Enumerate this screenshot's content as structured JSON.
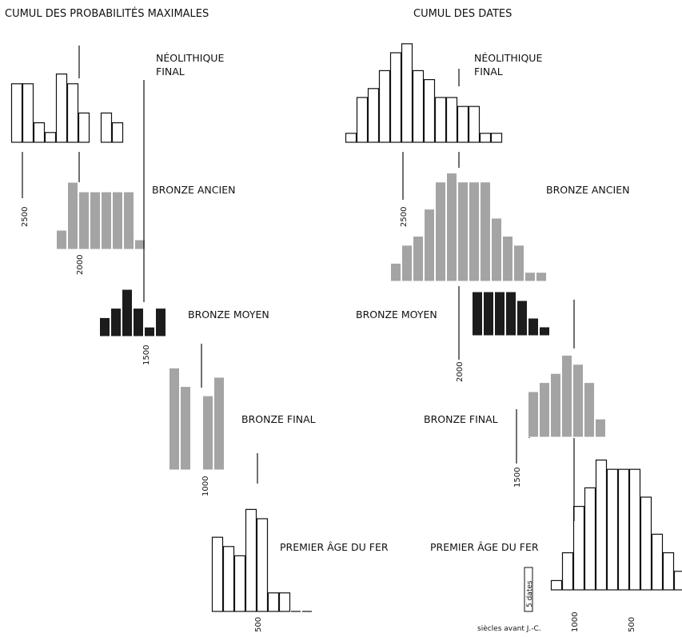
{
  "chart_data": [
    {
      "type": "bar",
      "title": "CUMUL DES PROBABILITÉS MAXIMALES",
      "tick_labels": [
        "2500",
        "2000",
        "1500",
        "1000",
        "500"
      ],
      "series": [
        {
          "name": "NÉOLITHIQUE FINAL",
          "values": [
            6,
            6,
            2,
            1,
            7,
            6,
            3,
            0,
            3,
            2
          ]
        },
        {
          "name": "BRONZE ANCIEN",
          "values": [
            2,
            7,
            6,
            6,
            6,
            6,
            6,
            1
          ]
        },
        {
          "name": "BRONZE MOYEN",
          "values": [
            2,
            3,
            5,
            3,
            1,
            3
          ]
        },
        {
          "name": "BRONZE FINAL",
          "values": [
            11,
            9,
            0,
            8,
            10
          ]
        },
        {
          "name": "PREMIER ÂGE DU FER",
          "values": [
            8,
            7,
            6,
            11,
            10,
            2,
            2,
            0,
            0
          ]
        }
      ]
    },
    {
      "type": "bar",
      "title": "CUMUL DES DATES",
      "tick_labels": [
        "2500",
        "2000",
        "1500",
        "1000",
        "500"
      ],
      "scale_label": "5 dates",
      "axis_caption": "siècles avant J.-C.",
      "series": [
        {
          "name": "NÉOLITHIQUE FINAL",
          "values": [
            1,
            5,
            6,
            8,
            10,
            11,
            8,
            7,
            5,
            5,
            4,
            4,
            1,
            1
          ]
        },
        {
          "name": "BRONZE ANCIEN",
          "values": [
            2,
            4,
            5,
            8,
            11,
            12,
            11,
            11,
            11,
            7,
            5,
            4,
            1,
            1
          ]
        },
        {
          "name": "BRONZE MOYEN",
          "values": [
            5,
            5,
            5,
            5,
            4,
            2,
            1
          ]
        },
        {
          "name": "BRONZE FINAL",
          "values": [
            5,
            6,
            7,
            9,
            8,
            6,
            2
          ]
        },
        {
          "name": "PREMIER ÂGE DU FER",
          "values": [
            1,
            4,
            9,
            11,
            14,
            13,
            13,
            13,
            10,
            6,
            4,
            2
          ]
        }
      ]
    }
  ]
}
